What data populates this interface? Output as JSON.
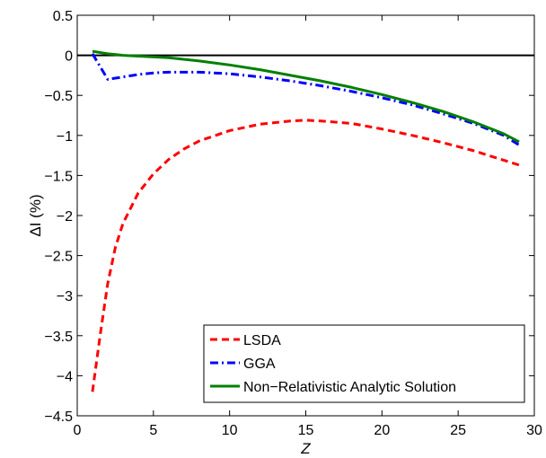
{
  "chart_data": {
    "type": "line",
    "xlabel": "Z",
    "ylabel": "ΔI (%)",
    "xlim": [
      0,
      30
    ],
    "ylim": [
      -4.5,
      0.5
    ],
    "xticks": [
      0,
      5,
      10,
      15,
      20,
      25,
      30
    ],
    "yticks": [
      0.5,
      0,
      -0.5,
      -1,
      -1.5,
      -2,
      -2.5,
      -3,
      -3.5,
      -4,
      -4.5
    ],
    "ytick_labels": [
      "0.5",
      "0",
      "−0.5",
      "−1",
      "−1.5",
      "−2",
      "−2.5",
      "−3",
      "−3.5",
      "−4",
      "−4.5"
    ],
    "grid": false,
    "legend_position": "bottom-right",
    "reference_line": {
      "y": 0,
      "color": "#000000"
    },
    "series": [
      {
        "name": "LSDA",
        "color": "#ff0000",
        "style": "dashed",
        "x": [
          1,
          1.5,
          2,
          2.5,
          3,
          4,
          5,
          6,
          7,
          8,
          10,
          12,
          14,
          15,
          16,
          18,
          20,
          22,
          24,
          26,
          28,
          29
        ],
        "y": [
          -4.2,
          -3.5,
          -2.85,
          -2.4,
          -2.1,
          -1.72,
          -1.48,
          -1.3,
          -1.17,
          -1.07,
          -0.94,
          -0.86,
          -0.82,
          -0.81,
          -0.82,
          -0.85,
          -0.92,
          -1.0,
          -1.09,
          -1.19,
          -1.31,
          -1.37
        ]
      },
      {
        "name": "GGA",
        "color": "#0000ff",
        "style": "dashdot",
        "x": [
          1,
          2,
          3,
          4,
          5,
          6,
          7,
          8,
          10,
          12,
          14,
          16,
          18,
          20,
          22,
          24,
          26,
          28,
          29
        ],
        "y": [
          0.02,
          -0.3,
          -0.27,
          -0.24,
          -0.22,
          -0.21,
          -0.21,
          -0.21,
          -0.23,
          -0.27,
          -0.32,
          -0.38,
          -0.45,
          -0.53,
          -0.62,
          -0.73,
          -0.85,
          -1.0,
          -1.12
        ]
      },
      {
        "name": "Non−Relativistic Analytic Solution",
        "color": "#008000",
        "style": "solid",
        "x": [
          1,
          2,
          3,
          4,
          5,
          6,
          8,
          10,
          12,
          14,
          16,
          18,
          20,
          22,
          24,
          26,
          28,
          29
        ],
        "y": [
          0.05,
          0.02,
          0.0,
          -0.01,
          -0.02,
          -0.03,
          -0.07,
          -0.12,
          -0.18,
          -0.25,
          -0.32,
          -0.4,
          -0.49,
          -0.59,
          -0.7,
          -0.83,
          -0.98,
          -1.08
        ]
      }
    ]
  }
}
